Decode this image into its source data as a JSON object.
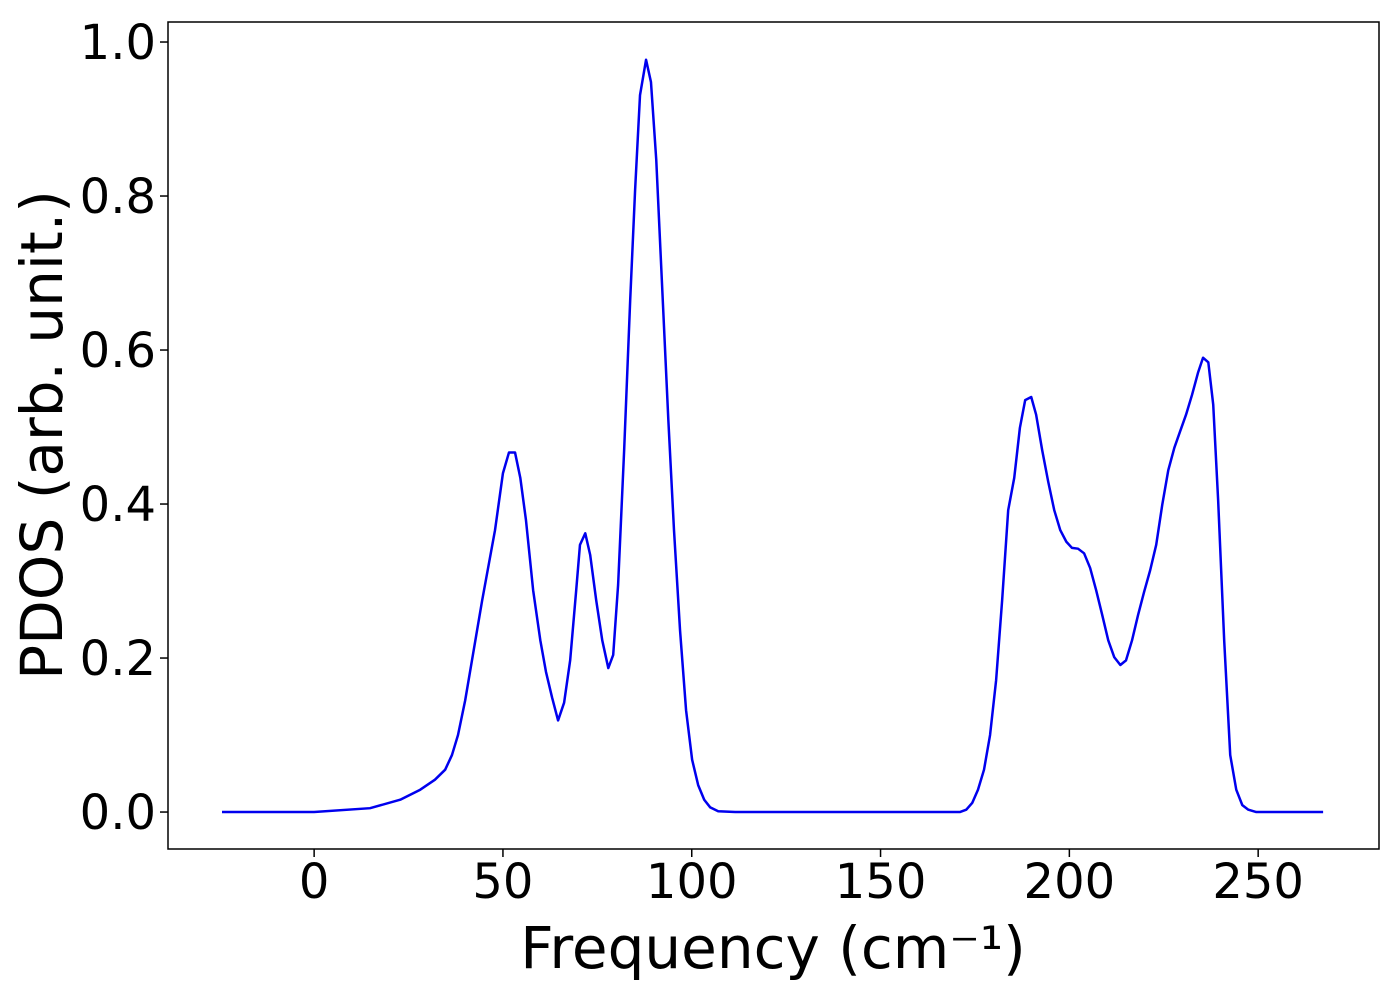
{
  "chart_data": {
    "type": "line",
    "xlabel": "Frequency (cm⁻¹)",
    "ylabel": "PDOS (arb. unit.)",
    "color": "#0000ee",
    "x": [
      -24.4,
      0,
      14.8,
      22.8,
      28.1,
      32,
      34.7,
      36.5,
      38.1,
      40,
      41.8,
      44.5,
      47.9,
      50,
      51.6,
      53.2,
      54.6,
      56.1,
      58,
      59.9,
      61.4,
      63,
      64.6,
      66.2,
      67.8,
      69.4,
      70.4,
      71.8,
      73.1,
      74.7,
      76.3,
      77.9,
      79.2,
      80.5,
      82.1,
      83.7,
      85,
      86.3,
      87.9,
      89.2,
      90.6,
      92.2,
      93.8,
      95.3,
      96.9,
      98.5,
      100.1,
      101.7,
      103.3,
      104.9,
      107,
      111.5,
      171,
      172.7,
      174.3,
      175.8,
      177.4,
      179,
      180.6,
      182.2,
      183.8,
      185.4,
      186.9,
      188.3,
      189.9,
      191.2,
      192.8,
      194.4,
      196,
      197.6,
      199.2,
      200.7,
      202.3,
      203.9,
      205.5,
      207.1,
      208.7,
      210.3,
      211.9,
      213.5,
      215,
      216.6,
      218.2,
      219.8,
      221.4,
      223,
      224.6,
      226.2,
      227.8,
      229.3,
      230.9,
      232.5,
      234.1,
      235.4,
      236.8,
      238.1,
      239.4,
      241,
      242.6,
      244.2,
      245.8,
      247.4,
      249.5,
      267.2
    ],
    "values": [
      0,
      0,
      0.005,
      0.016,
      0.029,
      0.042,
      0.055,
      0.074,
      0.1,
      0.145,
      0.197,
      0.275,
      0.366,
      0.44,
      0.467,
      0.467,
      0.434,
      0.379,
      0.288,
      0.223,
      0.182,
      0.149,
      0.119,
      0.142,
      0.197,
      0.288,
      0.347,
      0.362,
      0.334,
      0.275,
      0.223,
      0.187,
      0.204,
      0.295,
      0.47,
      0.665,
      0.808,
      0.931,
      0.977,
      0.948,
      0.847,
      0.678,
      0.509,
      0.366,
      0.236,
      0.132,
      0.068,
      0.035,
      0.016,
      0.006,
      0.001,
      0,
      0,
      0.003,
      0.012,
      0.029,
      0.055,
      0.1,
      0.171,
      0.275,
      0.392,
      0.434,
      0.499,
      0.535,
      0.539,
      0.516,
      0.47,
      0.429,
      0.392,
      0.366,
      0.351,
      0.343,
      0.342,
      0.336,
      0.317,
      0.288,
      0.256,
      0.223,
      0.201,
      0.191,
      0.197,
      0.223,
      0.256,
      0.286,
      0.314,
      0.347,
      0.399,
      0.444,
      0.473,
      0.494,
      0.516,
      0.542,
      0.571,
      0.59,
      0.584,
      0.529,
      0.405,
      0.223,
      0.074,
      0.029,
      0.009,
      0.003,
      0,
      0
    ],
    "xlim": [
      -38.7,
      282
    ],
    "ylim": [
      -0.048,
      1.026
    ],
    "xticks": [
      0,
      50,
      100,
      150,
      200,
      250
    ],
    "yticks": [
      {
        "value": 0,
        "label": "0.0"
      },
      0.2,
      0.4,
      0.6,
      0.8,
      {
        "value": 1,
        "label": "1.0"
      }
    ]
  }
}
